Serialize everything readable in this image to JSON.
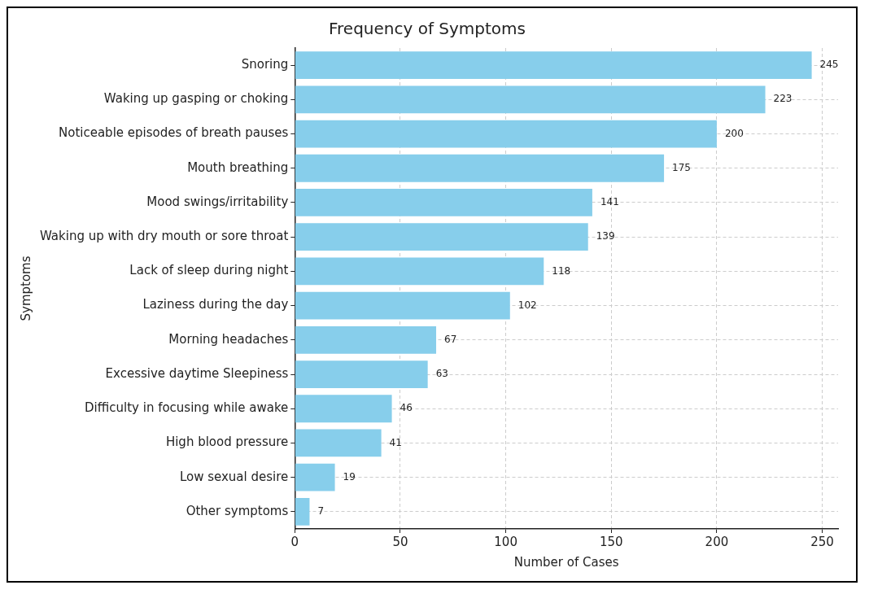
{
  "chart_data": {
    "type": "bar",
    "orientation": "horizontal",
    "title": "Frequency of Symptoms",
    "xlabel": "Number of Cases",
    "ylabel": "Symptoms",
    "categories": [
      "Snoring",
      "Waking up gasping or choking",
      "Noticeable episodes of breath pauses",
      "Mouth breathing",
      "Mood swings/irritability",
      "Waking up with dry mouth or sore throat",
      "Lack of sleep during night",
      "Laziness during the day",
      "Morning headaches",
      "Excessive daytime Sleepiness",
      "Difficulty in focusing while awake",
      "High blood pressure",
      "Low sexual desire",
      "Other symptoms"
    ],
    "values": [
      245,
      223,
      200,
      175,
      141,
      139,
      118,
      102,
      67,
      63,
      46,
      41,
      19,
      7
    ],
    "color": "#87ceeb",
    "xlim": [
      0,
      257.5
    ],
    "xticks": [
      0,
      50,
      100,
      150,
      200,
      250
    ],
    "grid": true,
    "data_labels": true,
    "legend": false
  }
}
